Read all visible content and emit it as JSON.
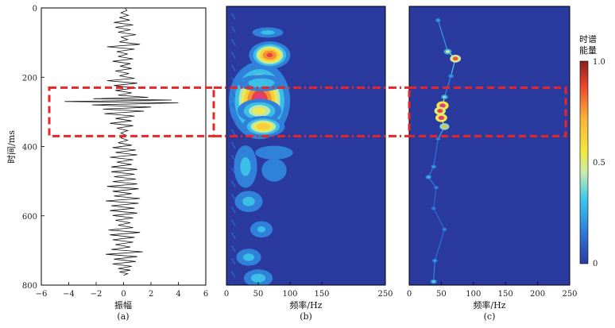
{
  "chart_data": [
    {
      "panel": "(a)",
      "type": "line",
      "xlabel": "振幅",
      "ylabel": "时间/ms",
      "xlim": [
        -6,
        6
      ],
      "ylim": [
        0,
        800
      ],
      "xticks": [
        "−6",
        "−4",
        "−2",
        "0",
        "2",
        "4",
        "6"
      ],
      "yticks": [
        "0",
        "200",
        "400",
        "600",
        "800"
      ],
      "series": [
        {
          "x": [
            0.1,
            0.25,
            -0.2,
            0.35,
            -0.3,
            0.45,
            -0.7,
            0.7,
            -0.6,
            0.5,
            -0.4,
            0.9,
            -0.2,
            0.3,
            -0.3,
            1.2,
            -1.2,
            0.8,
            -0.5,
            0.3,
            -0.4,
            0.7,
            -0.8,
            0.5,
            -0.25,
            0.6,
            -0.6,
            0.4,
            -0.3,
            0.8,
            -1.2,
            1.0,
            -0.7,
            0.9,
            -0.6,
            0.6,
            -0.4,
            1.8,
            -2.2,
            3.5,
            -4.3,
            4.0,
            -2.3,
            2.0,
            -1.5,
            1.5,
            -1.4,
            0.8,
            -0.6,
            0.6,
            -1.0,
            0.7,
            -0.5,
            0.3,
            -0.2,
            0.2,
            -0.2,
            0.3,
            -0.4,
            0.6,
            -0.8,
            0.9,
            -0.6,
            1.0,
            -1.0,
            0.7,
            -0.5,
            0.6,
            -0.9,
            1.0,
            -0.9,
            0.8,
            -0.7,
            0.9,
            -0.8,
            1.0,
            -1.2,
            1.1,
            -0.8,
            0.6,
            -0.7,
            1.2,
            -1.3,
            1.1,
            -0.9,
            0.8,
            -1.0,
            1.0,
            -0.8,
            0.7,
            -0.6,
            0.5,
            -0.4,
            0.7,
            -1.1,
            1.2,
            -1.0,
            0.8,
            -0.8,
            0.7,
            -0.6,
            0.5,
            -0.9,
            1.4,
            -1.3,
            1.0,
            -0.7,
            0.9,
            -0.8,
            0.6,
            -0.4,
            0.5,
            -0.3,
            0.3,
            0.0
          ],
          "y": [
            0,
            7,
            14,
            21,
            28,
            35,
            42,
            49,
            56,
            63,
            70,
            77,
            84,
            91,
            98,
            105,
            112,
            119,
            126,
            133,
            140,
            147,
            154,
            161,
            168,
            175,
            182,
            189,
            196,
            203,
            210,
            217,
            224,
            231,
            238,
            245,
            252,
            258,
            262,
            266,
            270,
            274,
            280,
            286,
            292,
            298,
            305,
            312,
            319,
            326,
            333,
            340,
            347,
            354,
            361,
            368,
            375,
            382,
            389,
            396,
            403,
            410,
            417,
            424,
            431,
            438,
            445,
            452,
            459,
            466,
            473,
            480,
            487,
            494,
            501,
            508,
            515,
            522,
            529,
            536,
            543,
            550,
            557,
            564,
            571,
            578,
            585,
            592,
            599,
            606,
            613,
            620,
            627,
            634,
            641,
            648,
            655,
            662,
            669,
            676,
            683,
            690,
            697,
            704,
            711,
            718,
            725,
            732,
            739,
            746,
            752,
            757,
            762,
            767,
            772
          ]
        }
      ],
      "highlight_box": {
        "time_range": [
          230,
          370
        ]
      }
    },
    {
      "panel": "(b)",
      "type": "heatmap",
      "xlabel": "频率/Hz",
      "xlim": [
        0,
        250
      ],
      "ylim": [
        0,
        800
      ],
      "xticks": [
        "0",
        "50",
        "100",
        "150",
        "250"
      ],
      "colormap": [
        "#2b3a9e",
        "#2e78d8",
        "#3ec8e8",
        "#c9ecae",
        "#f2ea3c",
        "#f9b23a",
        "#e9452c",
        "#e33a8e"
      ],
      "blobs": [
        {
          "f": 52,
          "t": 270,
          "sf": 26,
          "st": 60,
          "a": 1.0
        },
        {
          "f": 52,
          "t": 300,
          "sf": 22,
          "st": 22,
          "a": 0.55
        },
        {
          "f": 68,
          "t": 140,
          "sf": 18,
          "st": 22,
          "a": 0.9
        },
        {
          "f": 58,
          "t": 345,
          "sf": 20,
          "st": 18,
          "a": 0.7
        },
        {
          "f": 65,
          "t": 75,
          "sf": 20,
          "st": 12,
          "a": 0.3
        },
        {
          "f": 55,
          "t": 220,
          "sf": 28,
          "st": 18,
          "a": 0.35
        },
        {
          "f": 30,
          "t": 460,
          "sf": 15,
          "st": 50,
          "a": 0.3
        },
        {
          "f": 75,
          "t": 470,
          "sf": 18,
          "st": 30,
          "a": 0.25
        },
        {
          "f": 35,
          "t": 560,
          "sf": 18,
          "st": 25,
          "a": 0.3
        },
        {
          "f": 55,
          "t": 640,
          "sf": 15,
          "st": 20,
          "a": 0.28
        },
        {
          "f": 35,
          "t": 720,
          "sf": 16,
          "st": 20,
          "a": 0.3
        },
        {
          "f": 50,
          "t": 780,
          "sf": 18,
          "st": 20,
          "a": 0.32
        },
        {
          "f": 75,
          "t": 420,
          "sf": 30,
          "st": 20,
          "a": 0.22
        }
      ]
    },
    {
      "panel": "(c)",
      "type": "heatmap",
      "xlabel": "频率/Hz",
      "xlim": [
        0,
        250
      ],
      "ylim": [
        0,
        800
      ],
      "xticks": [
        "0",
        "50",
        "100",
        "150",
        "200",
        "250"
      ],
      "ridge": [
        {
          "f": 45,
          "t": 40,
          "a": 0.25
        },
        {
          "f": 60,
          "t": 130,
          "a": 0.5
        },
        {
          "f": 72,
          "t": 150,
          "a": 0.85
        },
        {
          "f": 65,
          "t": 200,
          "a": 0.25
        },
        {
          "f": 55,
          "t": 260,
          "a": 0.4
        },
        {
          "f": 52,
          "t": 285,
          "a": 1.0
        },
        {
          "f": 48,
          "t": 300,
          "a": 0.9
        },
        {
          "f": 50,
          "t": 320,
          "a": 0.95
        },
        {
          "f": 55,
          "t": 345,
          "a": 0.7
        },
        {
          "f": 45,
          "t": 380,
          "a": 0.2
        },
        {
          "f": 38,
          "t": 460,
          "a": 0.25
        },
        {
          "f": 30,
          "t": 490,
          "a": 0.3
        },
        {
          "f": 42,
          "t": 520,
          "a": 0.2
        },
        {
          "f": 38,
          "t": 580,
          "a": 0.2
        },
        {
          "f": 55,
          "t": 640,
          "a": 0.2
        },
        {
          "f": 40,
          "t": 730,
          "a": 0.25
        },
        {
          "f": 38,
          "t": 790,
          "a": 0.35
        }
      ]
    }
  ],
  "colorbar": {
    "title_line1": "时谱",
    "title_line2": "能量",
    "ticks": [
      "1.0",
      "0.5",
      "0"
    ]
  },
  "captions": [
    "(a)",
    "(b)",
    "(c)"
  ]
}
